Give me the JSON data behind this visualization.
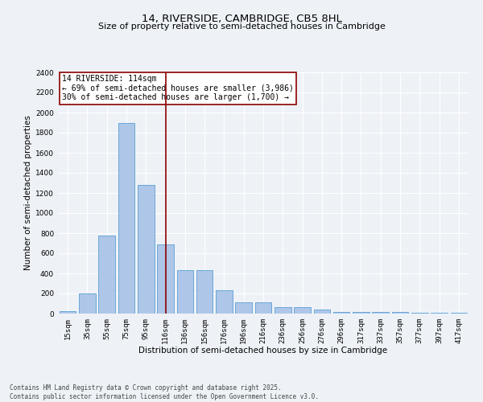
{
  "title": "14, RIVERSIDE, CAMBRIDGE, CB5 8HL",
  "subtitle": "Size of property relative to semi-detached houses in Cambridge",
  "xlabel": "Distribution of semi-detached houses by size in Cambridge",
  "ylabel": "Number of semi-detached properties",
  "categories": [
    "15sqm",
    "35sqm",
    "55sqm",
    "75sqm",
    "95sqm",
    "116sqm",
    "136sqm",
    "156sqm",
    "176sqm",
    "196sqm",
    "216sqm",
    "236sqm",
    "256sqm",
    "276sqm",
    "296sqm",
    "317sqm",
    "337sqm",
    "357sqm",
    "377sqm",
    "397sqm",
    "417sqm"
  ],
  "values": [
    25,
    200,
    775,
    1900,
    1280,
    690,
    435,
    435,
    230,
    110,
    110,
    65,
    65,
    38,
    20,
    20,
    20,
    15,
    10,
    10,
    5
  ],
  "bar_color": "#aec6e8",
  "bar_edge_color": "#5a9fd4",
  "vline_x_idx": 5,
  "vline_color": "#8b0000",
  "annotation_text": "14 RIVERSIDE: 114sqm\n← 69% of semi-detached houses are smaller (3,986)\n30% of semi-detached houses are larger (1,700) →",
  "annotation_box_color": "#ffffff",
  "annotation_box_edge": "#8b0000",
  "ylim": [
    0,
    2400
  ],
  "yticks": [
    0,
    200,
    400,
    600,
    800,
    1000,
    1200,
    1400,
    1600,
    1800,
    2000,
    2200,
    2400
  ],
  "bg_color": "#eef2f7",
  "footer": "Contains HM Land Registry data © Crown copyright and database right 2025.\nContains public sector information licensed under the Open Government Licence v3.0.",
  "title_fontsize": 9.5,
  "subtitle_fontsize": 8,
  "axis_label_fontsize": 7.5,
  "tick_fontsize": 6.5,
  "annotation_fontsize": 7,
  "footer_fontsize": 5.5
}
